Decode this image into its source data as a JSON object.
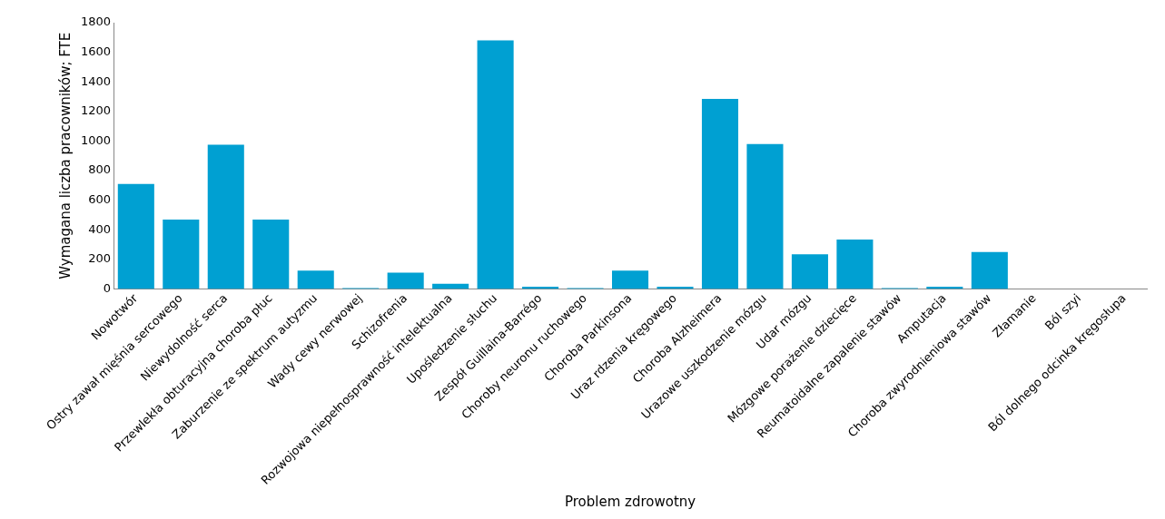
{
  "chart_data": {
    "type": "bar",
    "xlabel": "Problem zdrowotny",
    "ylabel": "Wymagana liczba pracowników; FTE",
    "categories": [
      "Nowotwór",
      "Ostry zawał mięśnia sercowego",
      "Niewydolność serca",
      "Przewlekła obturacyjna choroba płuc",
      "Zaburzenie ze spektrum autyzmu",
      "Wady cewy nerwowej",
      "Schizofrenia",
      "Rozwojowa niepełnosprawność intelektualna",
      "Upośledzenie słuchu",
      "Zespół Guillaina-Barrégo",
      "Choroby neuronu ruchowego",
      "Choroba Parkinsona",
      "Uraz rdzenia kręgowego",
      "Choroba Alzheimera",
      "Urazowe uszkodzenie mózgu",
      "Udar mózgu",
      "Mózgowe porażenie dziecięce",
      "Reumatoidalne zapalenie stawów",
      "Amputacja",
      "Choroba zwyrodnieniowa stawów",
      "Złamanie",
      "Ból szyi",
      "Ból dolnego odcinka kręgosłupa"
    ],
    "values": [
      710,
      470,
      975,
      470,
      125,
      7,
      110,
      35,
      1680,
      15,
      7,
      125,
      15,
      1285,
      980,
      235,
      335,
      7,
      15,
      250,
      0,
      0,
      0
    ],
    "color": "#00a0d2",
    "ylim": [
      0,
      1800
    ],
    "yticks": [
      0,
      200,
      400,
      600,
      800,
      1000,
      1200,
      1400,
      1600,
      1800
    ],
    "grid": false,
    "legend": false
  }
}
